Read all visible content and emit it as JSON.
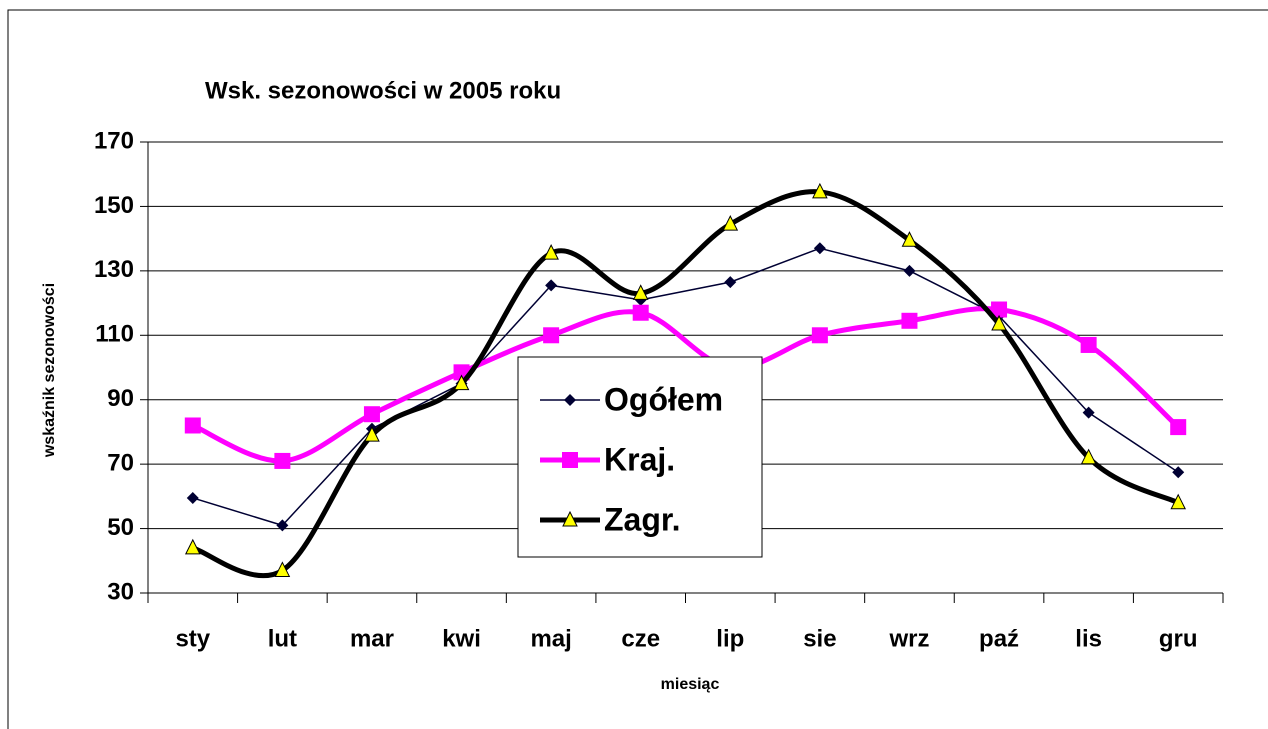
{
  "chart_data": {
    "type": "line",
    "title": "Wsk. sezonowości w 2005 roku",
    "x_label": "miesiąc",
    "y_label": "wskaźnik sezonowości",
    "categories": [
      "sty",
      "lut",
      "mar",
      "kwi",
      "maj",
      "cze",
      "lip",
      "sie",
      "wrz",
      "paź",
      "lis",
      "gru"
    ],
    "series": [
      {
        "name": "Ogółem",
        "color": "#000033",
        "marker": "diamond",
        "smooth": false,
        "values": [
          59.5,
          51,
          81,
          95,
          125.5,
          121,
          126.5,
          137,
          130,
          116,
          86,
          67.5
        ]
      },
      {
        "name": "Kraj.",
        "color": "#ff00ff",
        "marker": "square",
        "smooth": true,
        "values": [
          82,
          71,
          85.5,
          98.5,
          110,
          117,
          100,
          110,
          114.5,
          118,
          107,
          81.5
        ]
      },
      {
        "name": "Zagr.",
        "color": "#000000",
        "marker": "triangle",
        "smooth": true,
        "values": [
          44,
          37,
          79,
          95,
          135.5,
          123,
          144.5,
          154.5,
          139.5,
          113.5,
          72,
          58
        ]
      }
    ],
    "ylim": [
      30,
      170
    ],
    "yticks": [
      30,
      50,
      70,
      90,
      110,
      130,
      150,
      170
    ],
    "grid": true
  }
}
